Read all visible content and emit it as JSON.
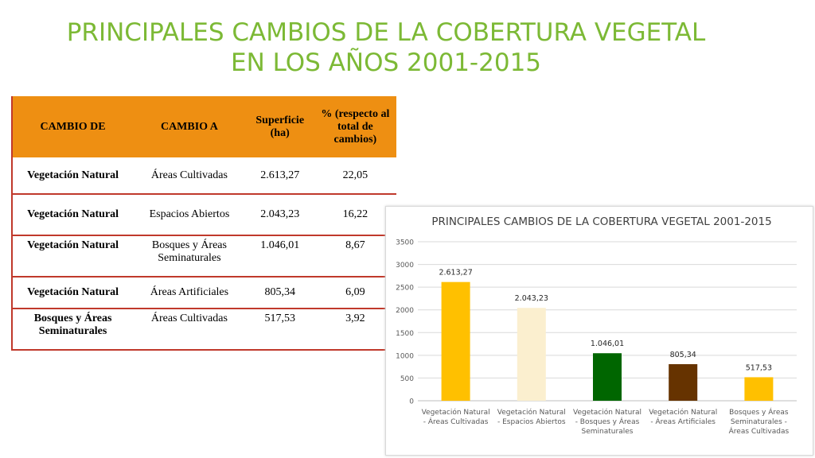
{
  "page": {
    "title_line1": "PRINCIPALES CAMBIOS DE LA COBERTURA VEGETAL",
    "title_line2": "EN LOS AÑOS 2001-2015"
  },
  "table": {
    "headers": [
      "CAMBIO DE",
      "CAMBIO A",
      "Superficie (ha)",
      "% (respecto al total de cambios)"
    ],
    "rows": [
      [
        "Vegetación Natural",
        "Áreas Cultivadas",
        "2.613,27",
        "22,05"
      ],
      [
        "Vegetación Natural",
        "Espacios Abiertos",
        "2.043,23",
        "16,22"
      ],
      [
        "Vegetación Natural",
        "Bosques y Áreas Seminaturales",
        "1.046,01",
        "8,67"
      ],
      [
        "Vegetación Natural",
        "Áreas Artificiales",
        "805,34",
        "6,09"
      ],
      [
        "Bosques y Áreas Seminaturales",
        "Áreas Cultivadas",
        "517,53",
        "3,92"
      ]
    ]
  },
  "chart_data": {
    "type": "bar",
    "title": "PRINCIPALES CAMBIOS  DE LA COBERTURA VEGETAL 2001-2015",
    "categories": [
      [
        "Vegetación Natural",
        "- Áreas Cultivadas"
      ],
      [
        "Vegetación Natural",
        "- Espacios Abiertos"
      ],
      [
        "Vegetación Natural",
        "- Bosques y Áreas",
        "Seminaturales"
      ],
      [
        "Vegetación Natural",
        "- Áreas Artificiales"
      ],
      [
        "Bosques y Áreas",
        "Seminaturales -",
        "Áreas Cultivadas"
      ]
    ],
    "values": [
      2613.27,
      2043.23,
      1046.01,
      805.34,
      517.53
    ],
    "data_labels": [
      "2.613,27",
      "2.043,23",
      "1.046,01",
      "805,34",
      "517,53"
    ],
    "bar_colors": [
      "#ffc000",
      "#fbefcf",
      "#006600",
      "#663300",
      "#ffc000"
    ],
    "yticks": [
      "0",
      "500",
      "1000",
      "1500",
      "2000",
      "2500",
      "3000",
      "3500"
    ],
    "ylim": [
      0,
      3500
    ],
    "grid": true,
    "legend": "none",
    "xlabel": "",
    "ylabel": ""
  }
}
